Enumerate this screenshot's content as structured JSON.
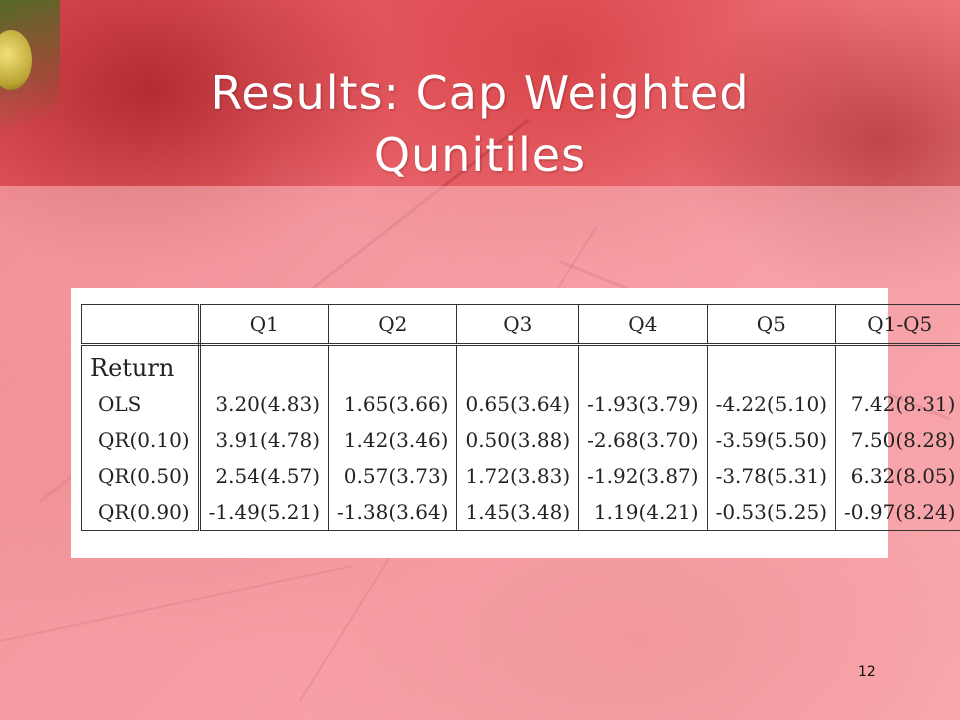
{
  "slide": {
    "title_line1": "Results: Cap Weighted",
    "title_line2": "Qunitiles",
    "page_number": "12"
  },
  "table": {
    "columns": [
      "Q1",
      "Q2",
      "Q3",
      "Q4",
      "Q5",
      "Q1-Q5"
    ],
    "section_label": "Return",
    "rows": [
      {
        "label": "OLS",
        "values": [
          "3.20(4.83)",
          "1.65(3.66)",
          "0.65(3.64)",
          "-1.93(3.79)",
          "-4.22(5.10)",
          "7.42(8.31)"
        ]
      },
      {
        "label": "QR(0.10)",
        "values": [
          "3.91(4.78)",
          "1.42(3.46)",
          "0.50(3.88)",
          "-2.68(3.70)",
          "-3.59(5.50)",
          "7.50(8.28)"
        ]
      },
      {
        "label": "QR(0.50)",
        "values": [
          "2.54(4.57)",
          "0.57(3.73)",
          "1.72(3.83)",
          "-1.92(3.87)",
          "-3.78(5.31)",
          "6.32(8.05)"
        ]
      },
      {
        "label": "QR(0.90)",
        "values": [
          "-1.49(5.21)",
          "-1.38(3.64)",
          "1.45(3.48)",
          "1.19(4.21)",
          "-0.53(5.25)",
          "-0.97(8.24)"
        ]
      }
    ]
  },
  "colors": {
    "background_red": "#e4505a",
    "overlay_pink": "#ffcdd2",
    "title_text": "#ffffff",
    "table_bg": "#ffffff"
  }
}
